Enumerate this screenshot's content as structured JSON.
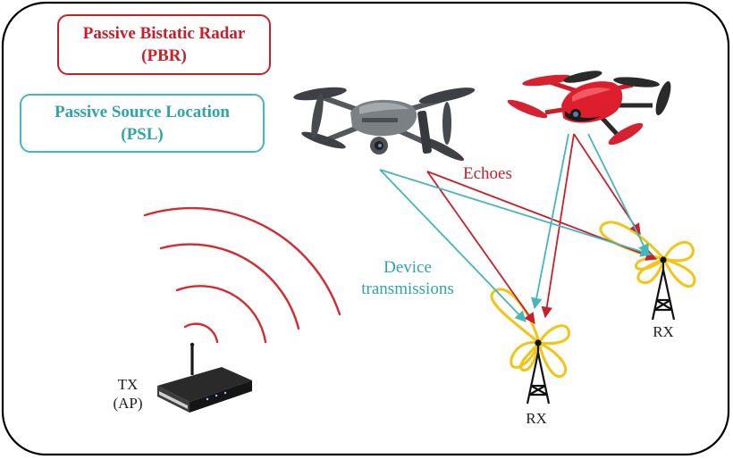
{
  "legend": {
    "pbr_line1": "Passive Bistatic Radar",
    "pbr_line2": "(PBR)",
    "psl_line1": "Passive Source Location",
    "psl_line2": "(PSL)"
  },
  "labels": {
    "echoes": "Echoes",
    "device_line1": "Device",
    "device_line2": "transmissions",
    "tx_line1": "TX",
    "tx_line2": "(AP)",
    "rx_1": "RX",
    "rx_2": "RX"
  },
  "colors": {
    "border": "#000000",
    "pbr_red": "#c8202a",
    "psl_teal": "#45b6b9",
    "lobe_yellow": "#f2c414",
    "drone_grey": "#6c7075",
    "drone_red": "#d8202c"
  },
  "icons": {
    "transmitter": "wifi-router-icon",
    "receiver": "antenna-tower-icon",
    "drone_grey": "quadcopter-grey-icon",
    "drone_red": "quadcopter-red-icon"
  }
}
